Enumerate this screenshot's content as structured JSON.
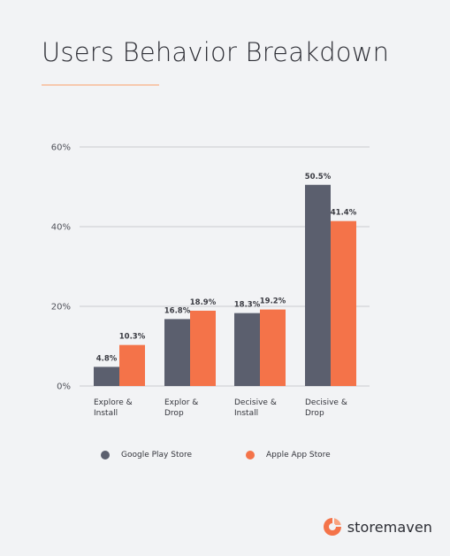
{
  "page": {
    "title": "Users Behavior Breakdown",
    "brand_name": "storemaven"
  },
  "colors": {
    "google_play": "#5b5f6e",
    "apple_app_store": "#f47349",
    "underline": "#f7c9ae",
    "gridline": "#c9cbcf",
    "text": "#34353c",
    "logo": "#f47349"
  },
  "icons": {
    "brand_logo": "storemaven-logo-icon"
  },
  "chart_data": {
    "type": "bar",
    "title": "Users Behavior Breakdown",
    "categories": [
      [
        "Explore &",
        "Install"
      ],
      [
        "Explor &",
        "Drop"
      ],
      [
        "Decisive &",
        "Install"
      ],
      [
        "Decisive &",
        "Drop"
      ]
    ],
    "series": [
      {
        "name": "Google Play Store",
        "values": [
          4.8,
          16.8,
          18.3,
          50.5
        ],
        "labels": [
          "4.8%",
          "16.8%",
          "18.3%",
          "50.5%"
        ],
        "color": "#5b5f6e"
      },
      {
        "name": "Apple App Store",
        "values": [
          10.3,
          18.9,
          19.2,
          41.4
        ],
        "labels": [
          "10.3%",
          "18.9%",
          "19.2%",
          "41.4%"
        ],
        "color": "#f47349"
      }
    ],
    "ylim": [
      0,
      60
    ],
    "yticks": [
      0,
      20,
      40,
      60
    ],
    "ytick_labels": [
      "0%",
      "20%",
      "40%",
      "60%"
    ],
    "xlabel": "",
    "ylabel": "",
    "grid": true,
    "legend_position": "bottom"
  }
}
